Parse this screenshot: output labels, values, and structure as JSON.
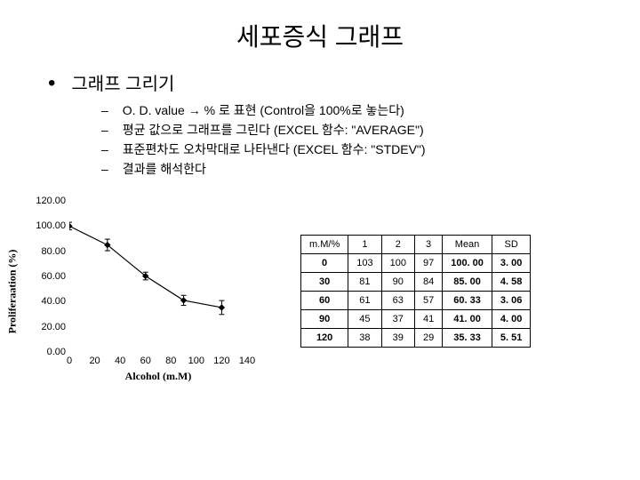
{
  "title": "세포증식 그래프",
  "main_bullet": "그래프 그리기",
  "subitems": [
    "O. D. value → % 로 표현 (Control을 100%로 놓는다)",
    "평균 값으로 그래프를 그린다 (EXCEL 함수: \"AVERAGE\")",
    "표준편차도 오차막대로 나타낸다 (EXCEL 함수: \"STDEV\")",
    "결과를 해석한다"
  ],
  "chart": {
    "type": "line",
    "ylabel": "Proliferaation (%)",
    "xlabel": "Alcohol (m.M)",
    "xlim": [
      0,
      140
    ],
    "ylim": [
      0,
      120
    ],
    "xtick_step": 20,
    "ytick_step": 20,
    "yticks": [
      "0.00",
      "20.00",
      "40.00",
      "60.00",
      "80.00",
      "100.00",
      "120.00"
    ],
    "xticks": [
      "0",
      "20",
      "40",
      "60",
      "80",
      "100",
      "120",
      "140"
    ],
    "series": {
      "x": [
        0,
        30,
        60,
        90,
        120
      ],
      "y": [
        100.0,
        85.0,
        60.33,
        41.0,
        35.33
      ],
      "err": [
        3.0,
        4.58,
        3.06,
        4.0,
        5.51
      ],
      "line_color": "#000000",
      "marker_color": "#000000",
      "marker": "diamond",
      "marker_size": 6,
      "line_width": 1.2
    },
    "background_color": "#ffffff",
    "axis_color": "#000000",
    "tick_fontsize": 11,
    "label_fontsize": 12
  },
  "table": {
    "columns": [
      "m.M/%",
      "1",
      "2",
      "3",
      "Mean",
      "SD"
    ],
    "rows": [
      [
        "0",
        "103",
        "100",
        "97",
        "100. 00",
        "3. 00"
      ],
      [
        "30",
        "81",
        "90",
        "84",
        "85. 00",
        "4. 58"
      ],
      [
        "60",
        "61",
        "63",
        "57",
        "60. 33",
        "3. 06"
      ],
      [
        "90",
        "45",
        "37",
        "41",
        "41. 00",
        "4. 00"
      ],
      [
        "120",
        "38",
        "39",
        "29",
        "35. 33",
        "5. 51"
      ]
    ],
    "bold_cols": [
      0,
      4,
      5
    ],
    "border_color": "#000000",
    "header_bg": "#ffffff",
    "fontsize": 11
  }
}
